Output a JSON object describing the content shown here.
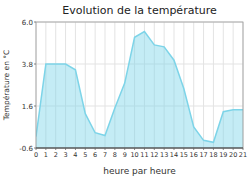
{
  "chart_data": {
    "type": "area",
    "title": "Evolution de la température",
    "x_label": "heure par heure",
    "y_label": "Température en °C",
    "x": [
      0,
      1,
      2,
      3,
      4,
      5,
      6,
      7,
      8,
      9,
      10,
      11,
      12,
      13,
      14,
      15,
      16,
      17,
      18,
      19,
      20,
      21
    ],
    "values": [
      0.0,
      3.8,
      3.8,
      3.8,
      3.5,
      1.2,
      0.2,
      0.05,
      1.5,
      2.8,
      5.2,
      5.5,
      4.8,
      4.7,
      4.0,
      2.5,
      0.5,
      -0.2,
      -0.3,
      1.3,
      1.4,
      1.4
    ],
    "color": "#7dd4e8",
    "xlim": [
      0,
      21
    ],
    "xticks": [
      0,
      1,
      2,
      3,
      4,
      5,
      6,
      7,
      8,
      9,
      10,
      11,
      12,
      13,
      14,
      15,
      16,
      17,
      18,
      19,
      20,
      21
    ],
    "ylim": [
      -0.6,
      6.0
    ],
    "yticks": [
      -0.6,
      1.6,
      3.8,
      {
        "value": 6.0,
        "label": "6.0"
      }
    ],
    "grid": true
  }
}
